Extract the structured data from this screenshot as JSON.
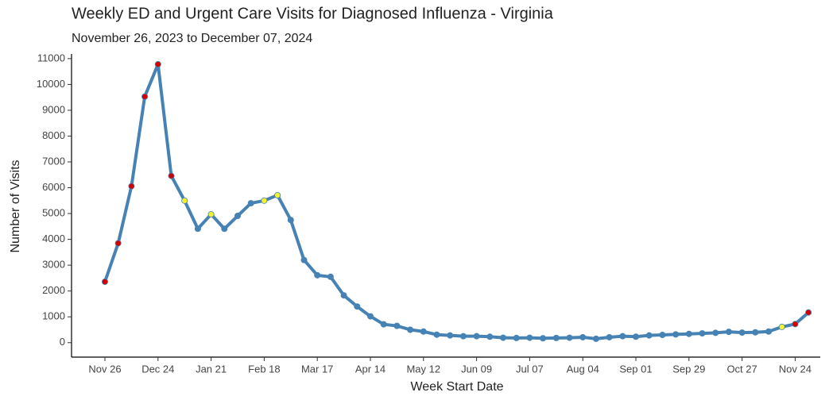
{
  "chart_data": {
    "type": "line",
    "title": "Weekly ED and Urgent Care Visits for Diagnosed Influenza - Virginia",
    "subtitle": "November 26, 2023 to December 07, 2024",
    "x_label": "Week Start Date",
    "y_label": "Number of Visits",
    "categories": [
      "Nov 26",
      null,
      null,
      null,
      "Dec 24",
      null,
      null,
      null,
      "Jan 21",
      null,
      null,
      null,
      "Feb 18",
      null,
      null,
      null,
      "Mar 17",
      null,
      null,
      null,
      "Apr 14",
      null,
      null,
      null,
      "May 12",
      null,
      null,
      null,
      "Jun 09",
      null,
      null,
      null,
      "Jul 07",
      null,
      null,
      null,
      "Aug 04",
      null,
      null,
      null,
      "Sep 01",
      null,
      null,
      null,
      "Sep 29",
      null,
      null,
      null,
      "Oct 27",
      null,
      null,
      null,
      "Nov 24",
      null
    ],
    "series": [
      {
        "name": "Visits",
        "color": "#4682b4",
        "values": [
          2360,
          3850,
          6060,
          9530,
          10780,
          6460,
          5500,
          4410,
          4970,
          4410,
          4910,
          5400,
          5500,
          5710,
          4750,
          3200,
          2610,
          2550,
          1830,
          1400,
          1020,
          710,
          650,
          500,
          430,
          310,
          280,
          250,
          250,
          230,
          190,
          180,
          190,
          170,
          180,
          190,
          210,
          150,
          210,
          250,
          230,
          280,
          300,
          320,
          340,
          360,
          380,
          420,
          390,
          400,
          430,
          610,
          720,
          1170
        ],
        "point_colors": [
          "#d40000",
          "#d40000",
          "#d40000",
          "#d40000",
          "#d40000",
          "#d40000",
          "#f2f230",
          "#4682b4",
          "#f2f230",
          "#4682b4",
          "#4682b4",
          "#4682b4",
          "#f2f230",
          "#f2f230",
          "#4682b4",
          "#4682b4",
          "#4682b4",
          "#4682b4",
          "#4682b4",
          "#4682b4",
          "#4682b4",
          "#4682b4",
          "#4682b4",
          "#4682b4",
          "#4682b4",
          "#4682b4",
          "#4682b4",
          "#4682b4",
          "#4682b4",
          "#4682b4",
          "#4682b4",
          "#4682b4",
          "#4682b4",
          "#4682b4",
          "#4682b4",
          "#4682b4",
          "#4682b4",
          "#4682b4",
          "#4682b4",
          "#4682b4",
          "#4682b4",
          "#4682b4",
          "#4682b4",
          "#4682b4",
          "#4682b4",
          "#4682b4",
          "#4682b4",
          "#4682b4",
          "#4682b4",
          "#4682b4",
          "#4682b4",
          "#f2f230",
          "#d40000",
          "#d40000"
        ]
      }
    ],
    "ylim": [
      -560,
      11180
    ],
    "yticks": [
      0,
      1000,
      2000,
      3000,
      4000,
      5000,
      6000,
      7000,
      8000,
      9000,
      10000,
      11000
    ],
    "grid": false
  }
}
